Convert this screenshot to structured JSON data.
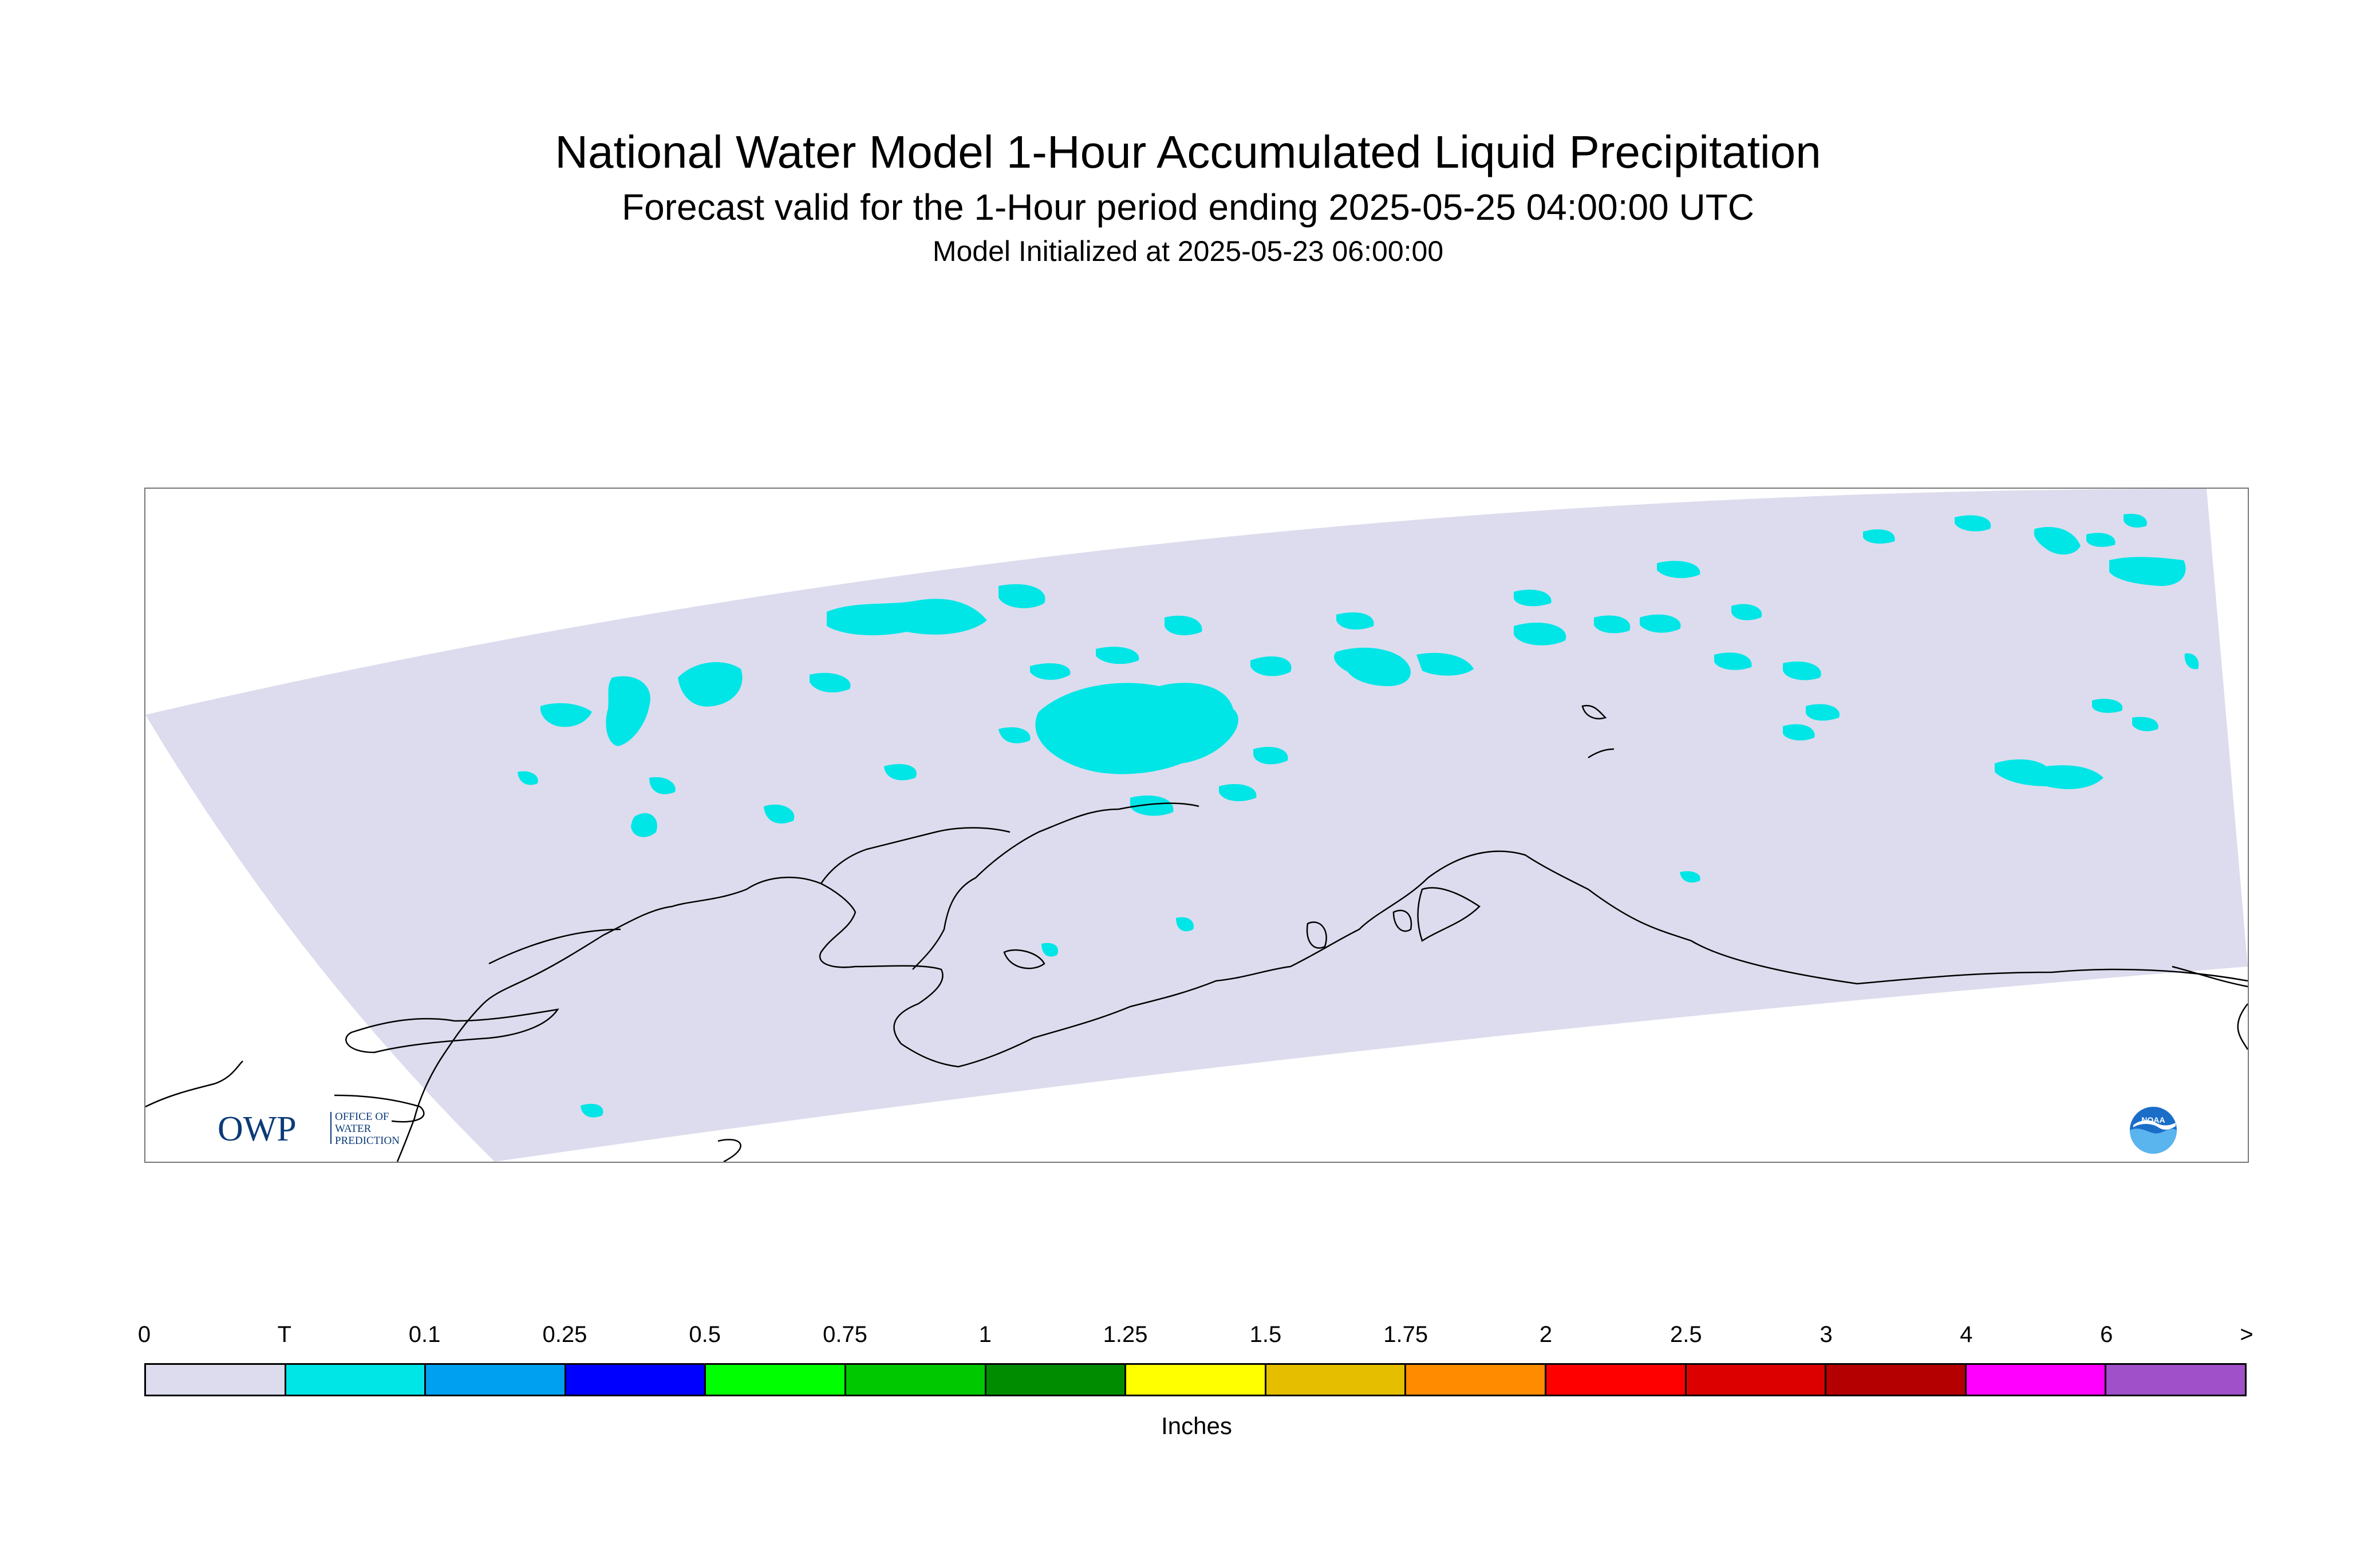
{
  "header": {
    "title": "National Water Model 1-Hour Accumulated Liquid Precipitation",
    "subtitle": "Forecast valid for the 1-Hour period ending 2025-05-25 04:00:00 UTC",
    "init": "Model Initialized at 2025-05-23 06:00:00"
  },
  "map": {
    "region": "Alaska",
    "domain_color": "#dcdcee",
    "precip_color": "#00e6e6",
    "coastline_color": "#000000"
  },
  "logos": {
    "owp_mark": "OWP",
    "owp_text": [
      "OFFICE OF",
      "WATER",
      "PREDICTION"
    ],
    "noaa_text": "NOAA"
  },
  "legend": {
    "unit": "Inches",
    "ticks": [
      "0",
      "T",
      "0.1",
      "0.25",
      "0.5",
      "0.75",
      "1",
      "1.25",
      "1.5",
      "1.75",
      "2",
      "2.5",
      "3",
      "4",
      "6",
      ">"
    ],
    "colors": [
      "#dcdcee",
      "#00e6e6",
      "#00a0f0",
      "#0000ff",
      "#00ff00",
      "#00c800",
      "#008c00",
      "#ffff00",
      "#e6be00",
      "#ff8c00",
      "#ff0000",
      "#dc0000",
      "#b40000",
      "#ff00ff",
      "#a050c8"
    ]
  }
}
